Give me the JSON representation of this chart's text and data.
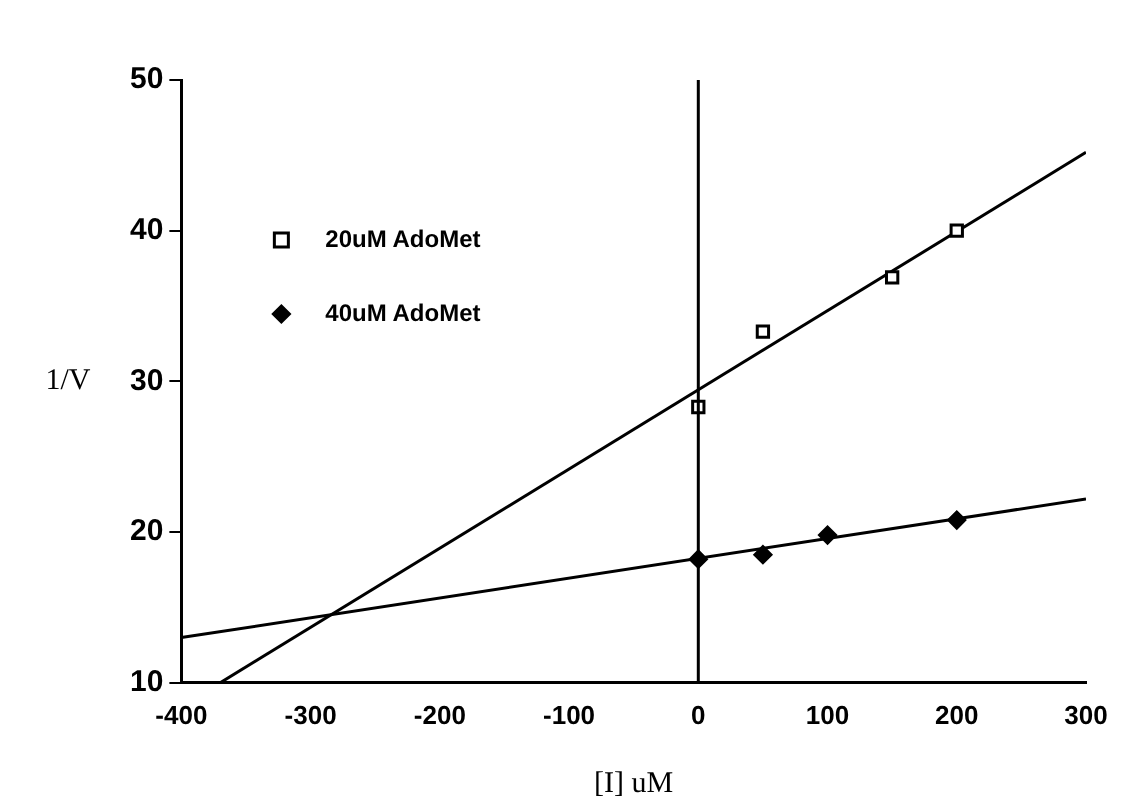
{
  "chart_data": {
    "type": "scatter",
    "xlabel": "[I] uM",
    "ylabel": "1/V",
    "xlim": [
      -400,
      300
    ],
    "xticks": [
      -400,
      -300,
      -200,
      -100,
      0,
      100,
      200,
      300
    ],
    "ylim": [
      10,
      50
    ],
    "yticks": [
      10,
      20,
      30,
      40,
      50
    ],
    "grid": false,
    "legend": "top left",
    "ref_lines": [
      {
        "axis": "x",
        "value": 0,
        "color": "#000000"
      }
    ],
    "series": [
      {
        "name": "20uM AdoMet",
        "color": "#000000",
        "marker": "square",
        "x": [
          0,
          50,
          150,
          200
        ],
        "values": [
          28.3,
          33.3,
          36.9,
          40
        ]
      },
      {
        "name": "40uM AdoMet",
        "color": "#000000",
        "marker": "diamond",
        "x": [
          0,
          50,
          100,
          200
        ],
        "values": [
          18.2,
          18.5,
          19.8,
          20.8
        ]
      },
      {
        "type": "line",
        "color": "#000000",
        "marker": "none",
        "x": [
          -370,
          300
        ],
        "values": [
          10,
          45.2
        ]
      },
      {
        "type": "line",
        "color": "#000000",
        "marker": "none",
        "x": [
          -400,
          300
        ],
        "values": [
          13,
          22.2
        ]
      }
    ]
  }
}
